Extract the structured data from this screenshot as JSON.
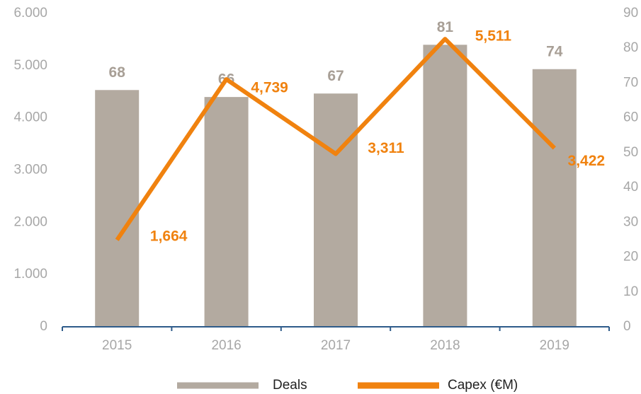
{
  "chart_data": {
    "type": "bar",
    "categories": [
      "2015",
      "2016",
      "2017",
      "2018",
      "2019"
    ],
    "series": [
      {
        "name": "Deals",
        "type": "bar",
        "axis": "y2",
        "color": "#b3aaa0",
        "values": [
          68,
          66,
          67,
          81,
          74
        ]
      },
      {
        "name": "Capex (€M)",
        "type": "line",
        "color": "#f0820f",
        "values": [
          1664,
          4739,
          3311,
          5511,
          3422
        ],
        "value_labels": [
          "1,664",
          "4,739",
          "3,311",
          "5,511",
          "3,422"
        ]
      }
    ],
    "ylim": [
      0,
      6000
    ],
    "yticks": [
      0,
      {
        "value": 1000,
        "label": "1.000"
      },
      {
        "value": 2000,
        "label": "2.000"
      },
      {
        "value": 3000,
        "label": "3.000"
      },
      {
        "value": 4000,
        "label": "4.000"
      },
      {
        "value": 5000,
        "label": "5.000"
      },
      {
        "value": 6000,
        "label": "6.000"
      }
    ],
    "y2lim": [
      0,
      90
    ],
    "y2ticks": [
      0,
      10,
      20,
      30,
      40,
      50,
      60,
      70,
      80,
      90
    ],
    "legend": "bottom"
  }
}
